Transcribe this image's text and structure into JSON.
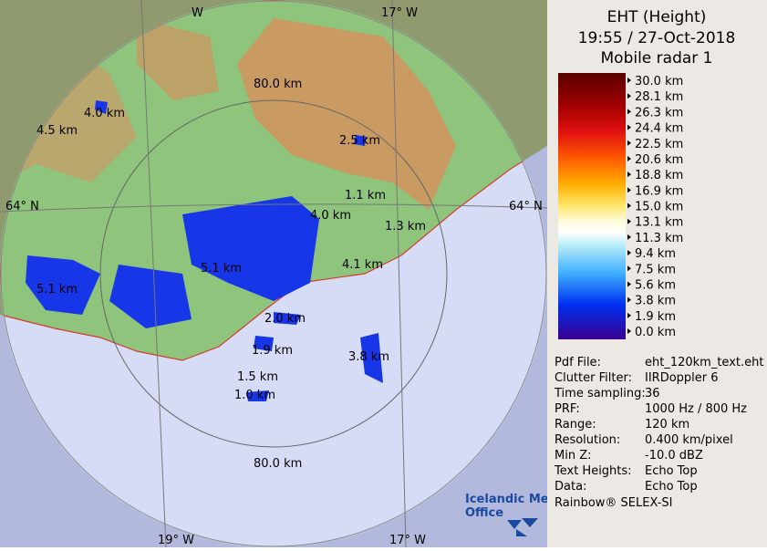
{
  "header": {
    "title": "EHT (Height)",
    "datetime": "19:55 / 27-Oct-2018",
    "radar": "Mobile radar 1"
  },
  "scale": {
    "labels": [
      "30.0 km",
      "28.1 km",
      "26.3 km",
      "24.4 km",
      "22.5 km",
      "20.6 km",
      "18.8 km",
      "16.9 km",
      "15.0 km",
      "13.1 km",
      "11.3 km",
      "9.4 km",
      "7.5 km",
      "5.6 km",
      "3.8 km",
      "1.9 km",
      "0.0 km"
    ]
  },
  "info": {
    "rows": [
      [
        "Pdf File:",
        "eht_120km_text.eht"
      ],
      [
        "Clutter Filter:",
        "IIRDoppler 6"
      ],
      [
        "Time sampling:",
        "36"
      ],
      [
        "PRF:",
        "1000 Hz / 800 Hz"
      ],
      [
        "Range:",
        "120 km"
      ],
      [
        "Resolution:",
        "0.400 km/pixel"
      ],
      [
        "Min Z:",
        "-10.0 dBZ"
      ],
      [
        "Text Heights:",
        "Echo Top"
      ],
      [
        "Data:",
        "Echo Top"
      ]
    ]
  },
  "footer": "Rainbow® SELEX-SI",
  "map": {
    "range_labels": [
      "80.0 km",
      "80.0 km"
    ],
    "grid_labels": [
      "64° N",
      "64° N",
      "19° W",
      "17° W",
      "17° W",
      "W"
    ],
    "echo_tops": [
      "4.0 km",
      "4.5 km",
      "2.5 km",
      "1.1 km",
      "4.0 km",
      "1.3 km",
      "5.1 km",
      "4.1 km",
      "5.1 km",
      "2.0 km",
      "1.9 km",
      "3.8 km",
      "1.5 km",
      "1.0 km"
    ],
    "logo": [
      "Icelandic Met",
      "Office"
    ]
  }
}
